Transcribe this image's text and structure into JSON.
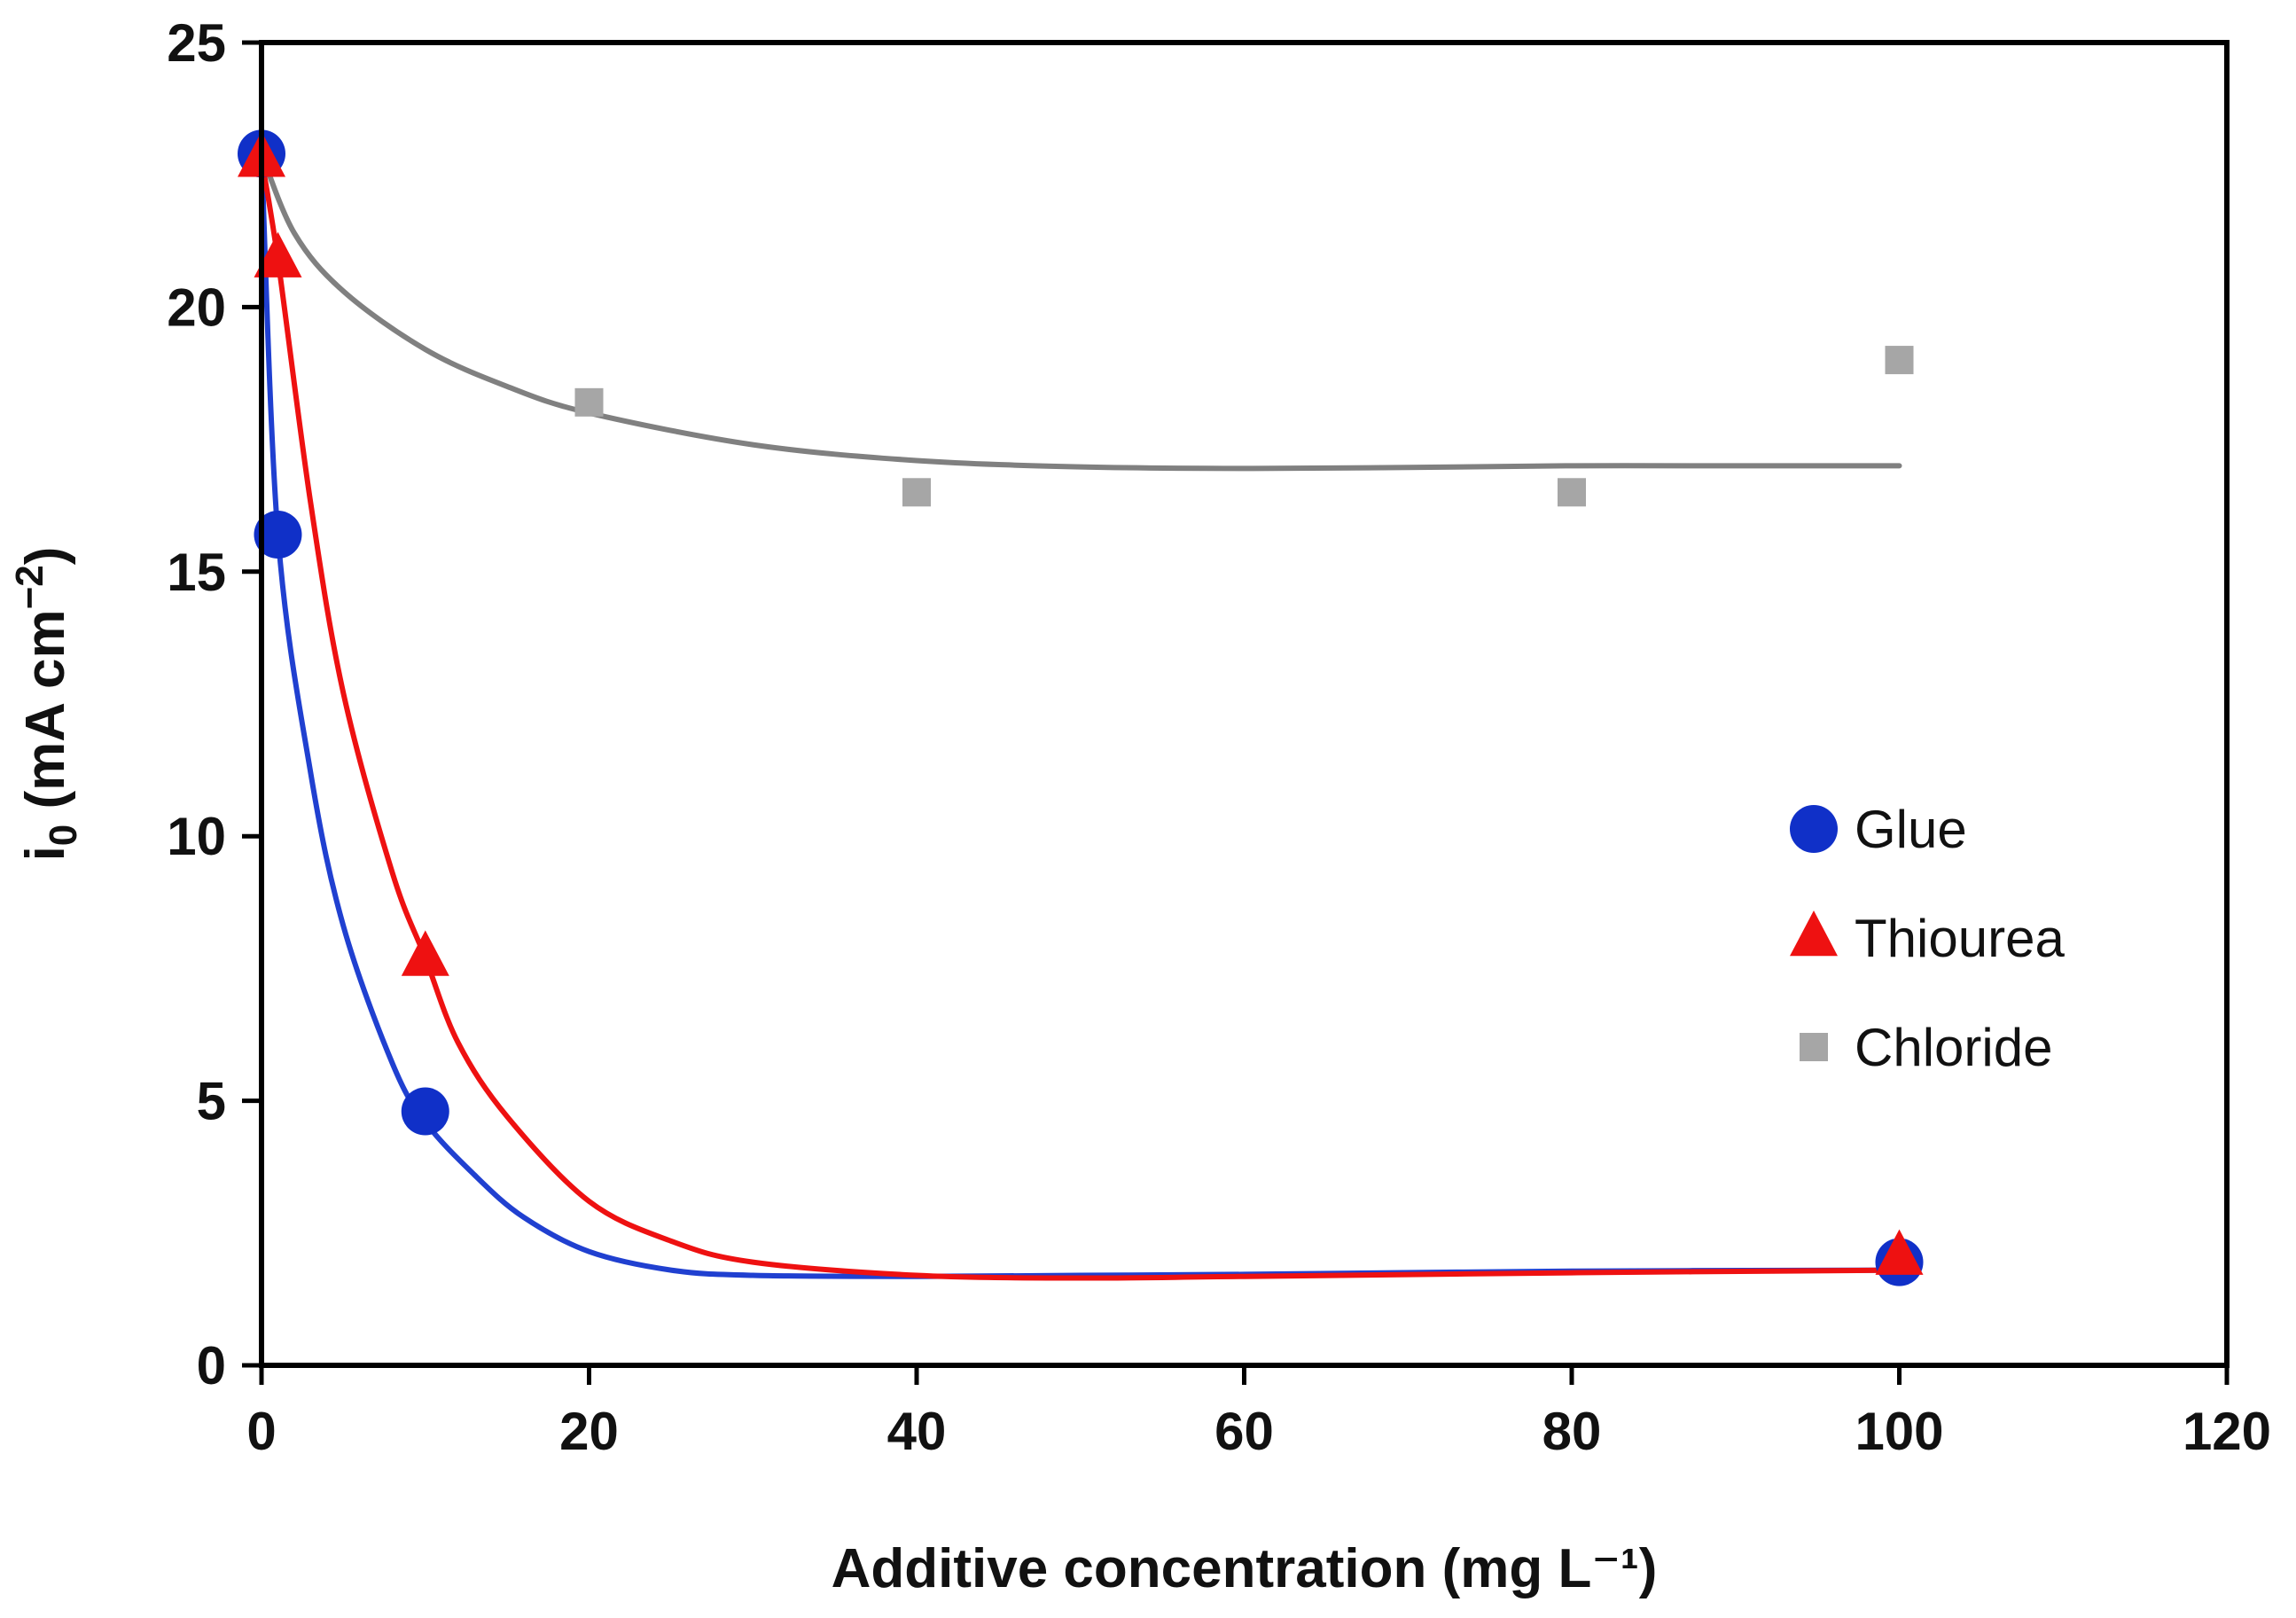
{
  "chart_data": {
    "type": "scatter",
    "title": "",
    "xlabel": "Additive concentration (mg L⁻¹)",
    "ylabel": {
      "main": "i",
      "sub": "0",
      "unit": " (mA cm",
      "sup": "−2",
      "close": ")"
    },
    "xlim": [
      0,
      120
    ],
    "ylim": [
      0,
      25
    ],
    "x_ticks": [
      0,
      20,
      40,
      60,
      80,
      100,
      120
    ],
    "y_ticks": [
      0,
      5,
      10,
      15,
      20,
      25
    ],
    "x_tick_labels": [
      "0",
      "20",
      "40",
      "60",
      "80",
      "100",
      "120"
    ],
    "y_tick_labels": [
      "0",
      "5",
      "10",
      "15",
      "20",
      "25"
    ],
    "grid": false,
    "legend_position": "right-middle",
    "series": [
      {
        "name": "Glue",
        "marker": "circle",
        "color": "#1030c8",
        "x": [
          0,
          1,
          10,
          100
        ],
        "y": [
          22.9,
          15.7,
          4.8,
          1.95
        ],
        "trend": {
          "color": "#2040d0",
          "x": [
            0,
            1,
            3,
            5,
            8,
            10,
            13,
            16,
            20,
            25,
            30,
            40,
            50,
            60,
            80,
            100
          ],
          "y": [
            22.9,
            15.7,
            11.2,
            8.3,
            5.7,
            4.6,
            3.6,
            2.8,
            2.15,
            1.8,
            1.7,
            1.68,
            1.7,
            1.72,
            1.78,
            1.8
          ]
        }
      },
      {
        "name": "Thiourea",
        "marker": "triangle",
        "color": "#ee1111",
        "x": [
          0,
          1,
          10,
          100
        ],
        "y": [
          22.8,
          20.9,
          7.7,
          2.05
        ],
        "trend": {
          "color": "#ee1111",
          "x": [
            0,
            1,
            3,
            5,
            8,
            10,
            12,
            15,
            20,
            25,
            30,
            40,
            50,
            60,
            80,
            100
          ],
          "y": [
            22.8,
            20.9,
            16.3,
            12.7,
            9.3,
            7.7,
            6.1,
            4.7,
            3.1,
            2.35,
            1.95,
            1.7,
            1.65,
            1.68,
            1.75,
            1.8
          ]
        }
      },
      {
        "name": "Chloride",
        "marker": "square",
        "color": "#a6a6a6",
        "x": [
          0,
          20,
          40,
          80,
          100
        ],
        "y": [
          22.9,
          18.2,
          16.5,
          16.5,
          19.0
        ],
        "trend": {
          "color": "#808080",
          "x": [
            0,
            2,
            5,
            10,
            15,
            20,
            30,
            40,
            50,
            60,
            70,
            80,
            90,
            100
          ],
          "y": [
            22.9,
            21.4,
            20.3,
            19.2,
            18.5,
            18.0,
            17.4,
            17.1,
            16.98,
            16.95,
            16.97,
            17.0,
            17.0,
            17.0
          ]
        }
      }
    ]
  }
}
